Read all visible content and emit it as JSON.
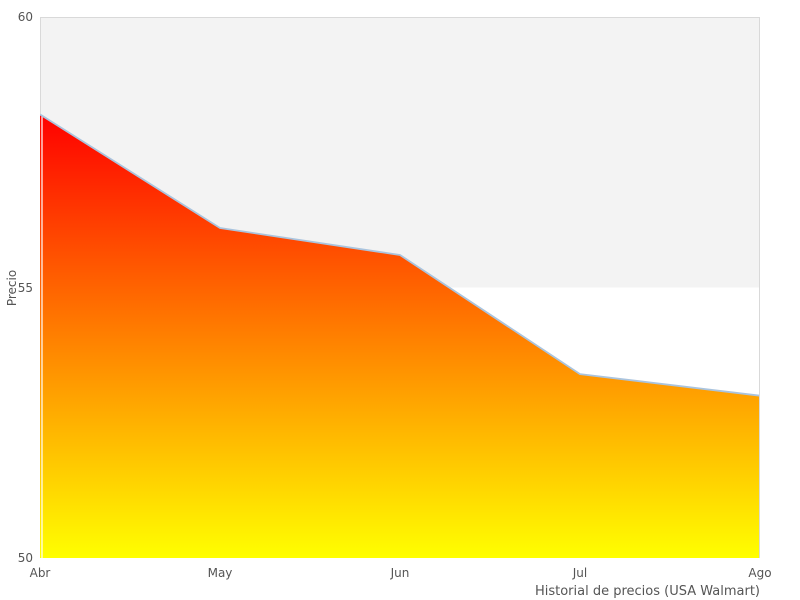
{
  "chart_data": {
    "type": "area",
    "categories": [
      "Abr",
      "May",
      "Jun",
      "Jul",
      "Ago"
    ],
    "values": [
      58.2,
      56.1,
      55.6,
      53.4,
      53.0
    ],
    "title": "Historial de precios (USA Walmart)",
    "xlabel": "Historial de precios (USA Walmart)",
    "ylabel": "Precio",
    "ylim": [
      50,
      60
    ],
    "yticks": [
      50,
      55,
      60
    ],
    "shaded_band": [
      55,
      60
    ],
    "grid": false,
    "legend": false,
    "colors": {
      "area_gradient_top": "#ff0000",
      "area_gradient_bottom": "#ffff00",
      "line": "#aac4de",
      "band_fill": "#f3f3f3",
      "plot_border": "#d9d9d9",
      "text": "#555555",
      "background": "#ffffff"
    }
  }
}
